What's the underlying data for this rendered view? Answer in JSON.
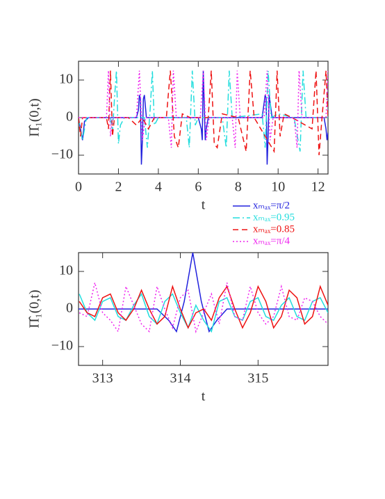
{
  "chart_data": [
    {
      "type": "line",
      "xlabel": "t",
      "ylabel": "Π̂₁(0,t)",
      "xlim": [
        0,
        12.5
      ],
      "ylim": [
        -15,
        15
      ],
      "xticks": [
        0,
        2,
        4,
        6,
        8,
        10,
        12
      ],
      "yticks": [
        {
          "value": -10,
          "label": "−10"
        },
        0,
        10
      ],
      "series": [
        {
          "name": "xₘₐₓ=π/2",
          "color": "#2020dd",
          "style": "solid",
          "x": [
            0,
            0.1,
            0.2,
            0.3,
            0.5,
            2.9,
            3.0,
            3.05,
            3.1,
            3.15,
            3.2,
            3.25,
            3.3,
            3.4,
            6.0,
            6.15,
            6.2,
            6.25,
            6.3,
            6.35,
            6.4,
            6.5,
            9.2,
            9.3,
            9.35,
            9.4,
            9.45,
            9.5,
            9.55,
            9.7,
            12.3,
            12.4,
            12.45,
            12.5
          ],
          "values": [
            0,
            -3,
            -6,
            -1,
            0,
            0,
            2,
            6,
            5,
            -12.5,
            -6,
            5,
            6,
            0,
            0,
            -3,
            -6,
            12.5,
            3,
            -6,
            -3,
            0,
            0,
            4,
            6,
            5,
            -12.5,
            -5,
            6,
            0,
            0,
            -3,
            -6,
            -4
          ]
        },
        {
          "name": "xₘₐₓ=0.95",
          "color": "#22dddd",
          "style": "dashdot",
          "x": [
            0,
            0.2,
            0.4,
            1.6,
            1.7,
            1.8,
            1.9,
            2.0,
            2.1,
            2.3,
            3.3,
            3.45,
            3.6,
            3.7,
            3.8,
            4.0,
            5.4,
            5.55,
            5.7,
            5.85,
            6.0,
            7.2,
            7.4,
            7.55,
            7.7,
            9.2,
            9.35,
            9.5,
            9.65,
            10.0,
            10.8,
            11.1,
            11.25,
            11.4,
            12.5
          ],
          "values": [
            0,
            -6,
            0,
            0,
            -4,
            5,
            12.5,
            -7,
            -2,
            0,
            0,
            -8,
            3,
            12.5,
            -2,
            0,
            0,
            -8,
            12.5,
            -2,
            0,
            0,
            -8,
            12.5,
            0,
            1,
            -8,
            12.5,
            0,
            1,
            0,
            -9,
            12.5,
            0,
            0
          ]
        },
        {
          "name": "xₘₐₓ=0.85",
          "color": "#ee1111",
          "style": "dashed",
          "x": [
            0,
            0.1,
            0.2,
            1.4,
            1.5,
            1.6,
            1.7,
            1.8,
            2.5,
            2.9,
            3.2,
            3.5,
            3.8,
            4.4,
            4.6,
            4.8,
            5.0,
            5.2,
            5.6,
            6.5,
            6.65,
            6.8,
            6.95,
            7.2,
            8.0,
            8.4,
            8.6,
            8.8,
            9.8,
            9.95,
            10.1,
            10.3,
            10.7,
            11.7,
            11.9,
            12.05,
            12.2,
            12.4,
            12.5
          ],
          "values": [
            0,
            -5,
            0,
            0,
            -3,
            12.5,
            -5,
            0,
            0,
            -2,
            0,
            -3,
            0,
            0,
            12.5,
            -5,
            -8,
            1,
            0,
            0,
            12.5,
            -7,
            -8,
            1,
            0,
            -9,
            12.5,
            0,
            -9,
            12.5,
            -5,
            1,
            0,
            -3,
            12.5,
            -10,
            0,
            12.5,
            0
          ]
        },
        {
          "name": "xₘₐₓ=π/4",
          "color": "#ee22ee",
          "style": "dotted",
          "x": [
            0,
            1.4,
            1.5,
            1.6,
            1.7,
            2.9,
            3.05,
            3.2,
            3.35,
            4.5,
            4.65,
            4.75,
            4.9,
            6.1,
            6.25,
            6.4,
            6.55,
            7.7,
            7.85,
            7.95,
            8.1,
            9.3,
            9.45,
            9.6,
            9.75,
            10.8,
            10.95,
            11.05,
            11.2,
            12.4,
            12.5
          ],
          "values": [
            0,
            0,
            12.5,
            -5,
            0,
            0,
            12.5,
            -6,
            0,
            0,
            -8,
            12.5,
            0,
            0,
            12.5,
            -6,
            0,
            0,
            -8,
            12.5,
            0,
            0,
            12.5,
            -6,
            0,
            0,
            -8,
            12.5,
            0,
            0,
            12.5
          ]
        }
      ]
    },
    {
      "type": "line",
      "xlabel": "t",
      "ylabel": "Π̂₁(0,t)",
      "xlim": [
        312.69,
        315.9
      ],
      "ylim": [
        -15,
        15
      ],
      "xticks": [
        313,
        314,
        315
      ],
      "yticks": [
        {
          "value": -10,
          "label": "−10"
        },
        0,
        10
      ],
      "series": [
        {
          "color": "#2020dd",
          "style": "solid",
          "x": [
            312.69,
            313.7,
            313.85,
            313.95,
            314.05,
            314.16,
            314.27,
            314.37,
            314.47,
            314.6,
            315.9
          ],
          "values": [
            0,
            0,
            -3,
            -6,
            2,
            15,
            2,
            -6,
            -3,
            0,
            0
          ]
        },
        {
          "color": "#22dddd",
          "style": "solid",
          "x": [
            312.7,
            312.8,
            312.9,
            313.0,
            313.1,
            313.2,
            313.3,
            313.4,
            313.5,
            313.6,
            313.7,
            313.8,
            313.9,
            314.0,
            314.1,
            314.2,
            314.3,
            314.4,
            314.5,
            314.6,
            314.7,
            314.8,
            314.9,
            315.0,
            315.1,
            315.2,
            315.3,
            315.4,
            315.5,
            315.6,
            315.7,
            315.8,
            315.9
          ],
          "values": [
            4,
            -1,
            -3,
            2,
            3,
            -2,
            -3,
            1,
            4,
            -2,
            -4,
            2,
            4,
            -1,
            -5,
            1,
            -3,
            -6,
            2,
            3,
            -2,
            -3,
            2,
            3,
            -2,
            -3,
            1,
            3,
            -2,
            -3,
            2,
            3,
            -1
          ]
        },
        {
          "color": "#ee1111",
          "style": "solid",
          "x": [
            312.7,
            312.8,
            312.9,
            313.0,
            313.1,
            313.2,
            313.3,
            313.4,
            313.5,
            313.6,
            313.7,
            313.8,
            313.9,
            314.0,
            314.1,
            314.2,
            314.3,
            314.4,
            314.5,
            314.6,
            314.7,
            314.8,
            314.9,
            315.0,
            315.1,
            315.2,
            315.3,
            315.4,
            315.5,
            315.6,
            315.7,
            315.8,
            315.9
          ],
          "values": [
            2,
            -1,
            -2,
            3,
            4,
            -1,
            -3,
            0,
            5,
            0,
            -4,
            -2,
            6,
            0,
            -5,
            -1,
            0,
            -3,
            3,
            6,
            0,
            -5,
            -1,
            6,
            2,
            -5,
            -2,
            5,
            3,
            -4,
            -2,
            6,
            1
          ]
        },
        {
          "color": "#ee22ee",
          "style": "dotted",
          "x": [
            312.7,
            312.8,
            312.9,
            313.0,
            313.1,
            313.2,
            313.3,
            313.4,
            313.5,
            313.6,
            313.7,
            313.8,
            313.9,
            314.0,
            314.1,
            314.2,
            314.3,
            314.4,
            314.5,
            314.6,
            314.7,
            314.8,
            314.9,
            315.0,
            315.1,
            315.2,
            315.3,
            315.4,
            315.5,
            315.6,
            315.7,
            315.8,
            315.9
          ],
          "values": [
            -1,
            -2,
            7,
            -1,
            -3,
            -6,
            6,
            1,
            -4,
            -6,
            6,
            0,
            -5,
            3,
            5,
            -6,
            -1,
            4,
            -4,
            7,
            -2,
            -3,
            6,
            -1,
            -4,
            -2,
            6,
            -2,
            -3,
            3,
            2,
            -2,
            -4
          ]
        }
      ]
    }
  ]
}
